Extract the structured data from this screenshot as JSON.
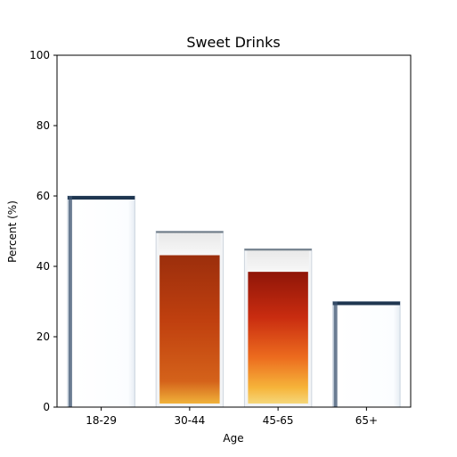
{
  "chart_data": {
    "type": "bar",
    "title": "Sweet Drinks",
    "xlabel": "Age",
    "ylabel": "Percent (%)",
    "categories": [
      "18-29",
      "30-44",
      "45-65",
      "65+"
    ],
    "values": [
      60,
      50,
      45,
      30
    ],
    "ylim": [
      0,
      100
    ],
    "yticks": [
      "0",
      "20",
      "40",
      "60",
      "80",
      "100"
    ],
    "grid": false,
    "bar_style": "glass-pictograph",
    "bar_fills": [
      "empty-glass",
      "amber-drink-with-foam",
      "red-orange-drink-with-foam",
      "empty-glass"
    ]
  }
}
